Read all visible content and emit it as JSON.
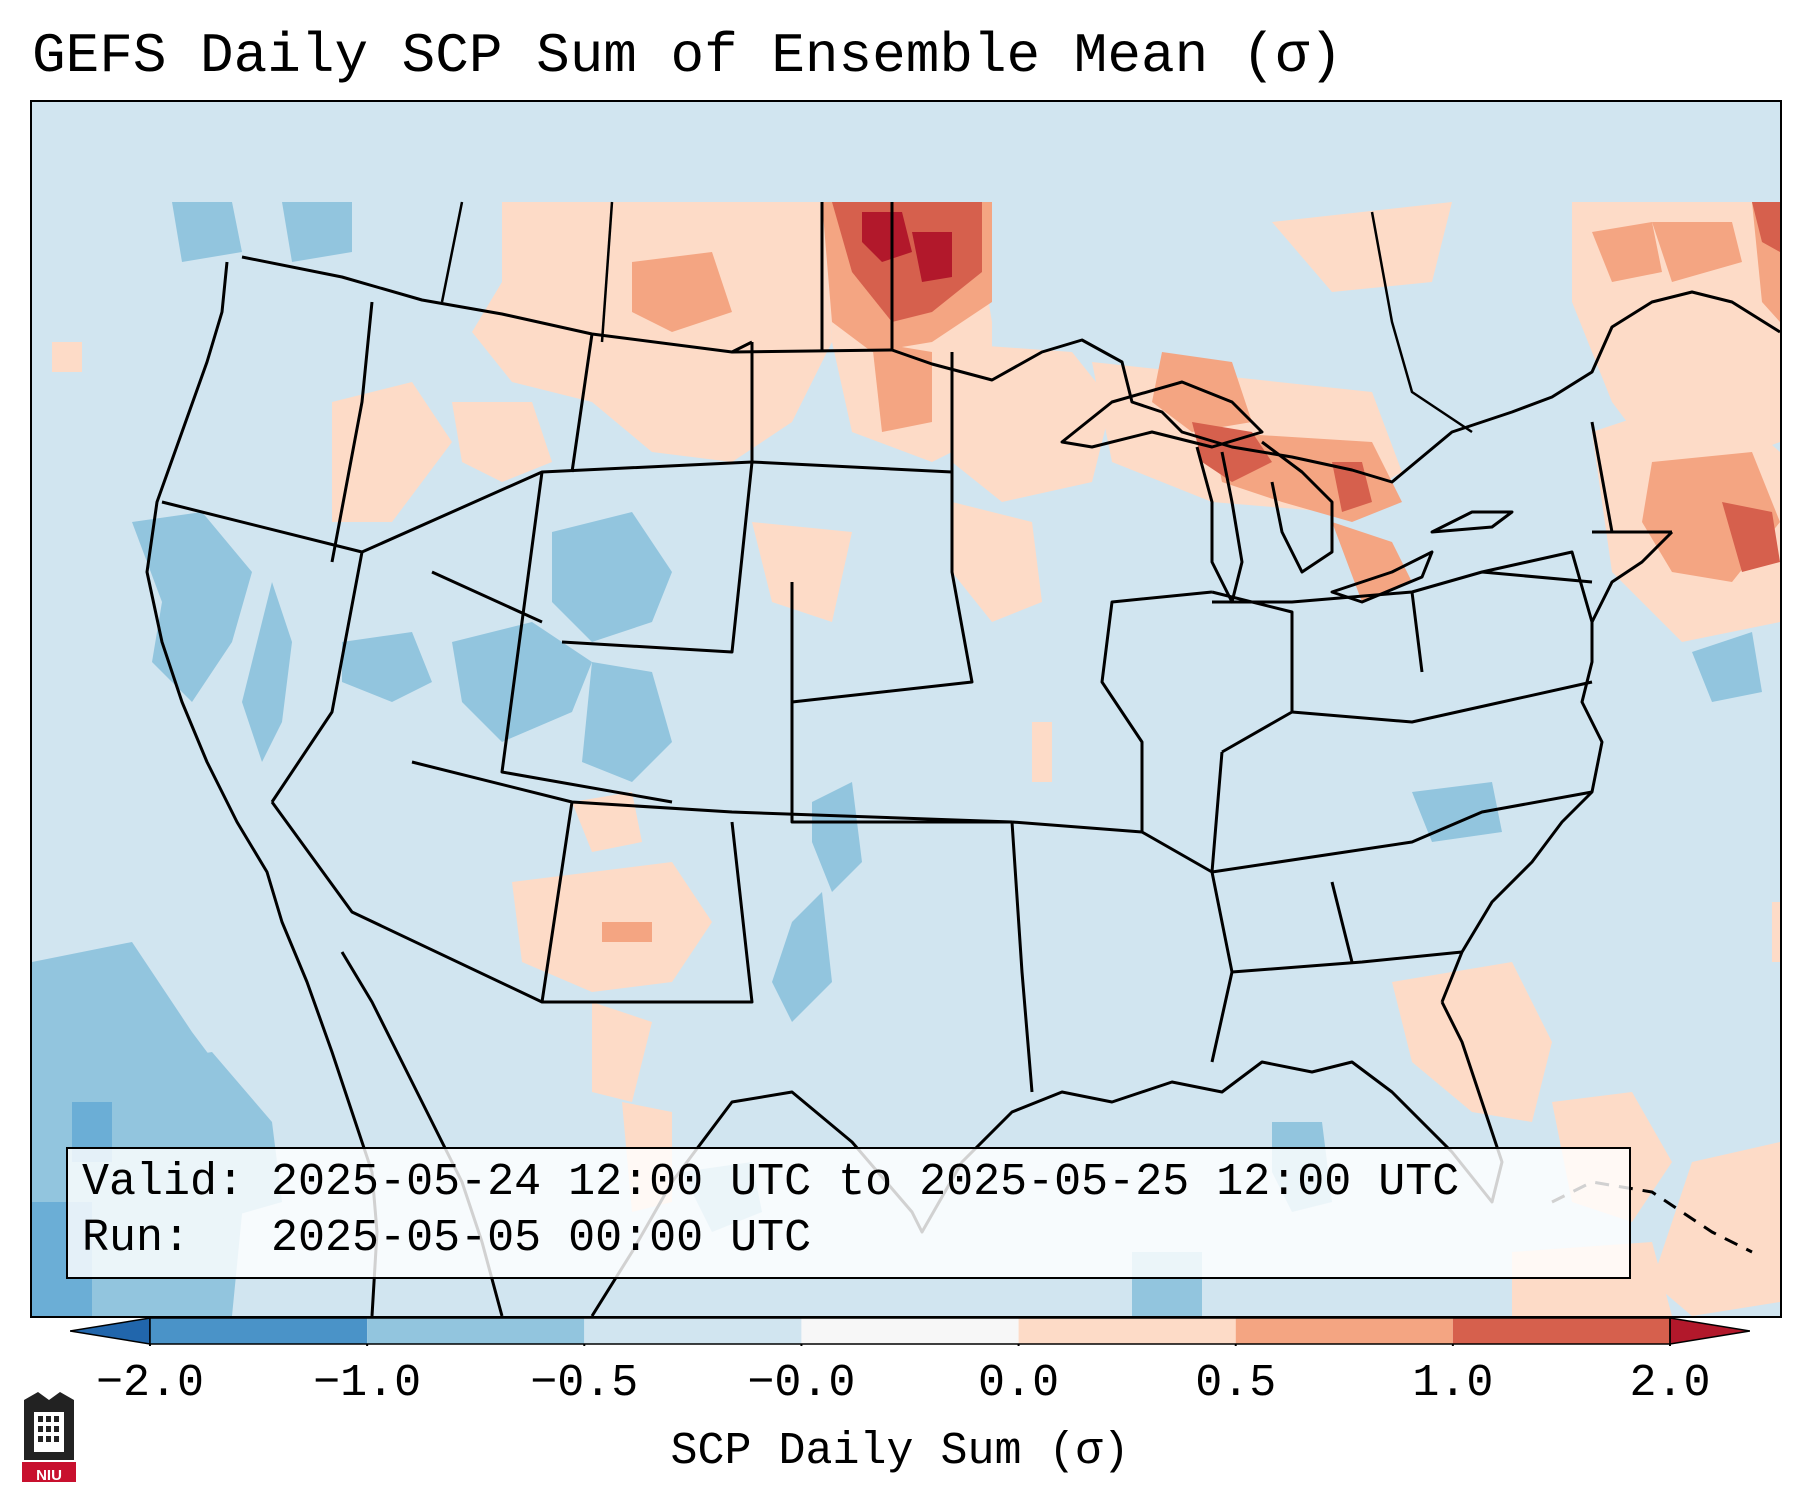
{
  "title": "GEFS Daily SCP Sum of Ensemble Mean (σ)",
  "info": {
    "valid_label": "Valid:",
    "valid_value": "2025-05-24 12:00 UTC to 2025-05-25 12:00 UTC",
    "run_label": "Run:",
    "run_value": "2025-05-05 00:00 UTC"
  },
  "colorbar": {
    "label": "SCP Daily Sum (σ)",
    "ticks": [
      "−2.0",
      "−1.0",
      "−0.5",
      "−0.0",
      "0.0",
      "0.5",
      "1.0",
      "2.0"
    ],
    "bins": [
      {
        "color": "#4a93c8"
      },
      {
        "color": "#92c5de"
      },
      {
        "color": "#d1e5f0"
      },
      {
        "color": "#f7f7f7"
      },
      {
        "color": "#fddbc7"
      },
      {
        "color": "#f4a582"
      },
      {
        "color": "#d6604d"
      }
    ],
    "extend_low_color": "#2166ac",
    "extend_high_color": "#b2182b"
  },
  "map": {
    "background_color": "#d1e5f0",
    "regions": [
      {
        "area": "North Dakota / southern Manitoba",
        "level": "1.0 to 2.0+"
      },
      {
        "area": "Great Lakes (Lake Superior, Lake Huron, Lake Michigan)",
        "level": "0.5 to 1.0"
      },
      {
        "area": "Southern New England / Gulf of Maine",
        "level": "0.5 to 1.0"
      },
      {
        "area": "Quebec / New Brunswick",
        "level": "0.5 to 1.0"
      },
      {
        "area": "Montana / Idaho / Wyoming north",
        "level": "0.0 to 0.5"
      },
      {
        "area": "New Mexico / west Texas",
        "level": "0.0 to 0.5"
      },
      {
        "area": "Florida / western Atlantic",
        "level": "0.0 to 0.5"
      },
      {
        "area": "Great Basin / Utah / Colorado",
        "level": "-1.0 to -0.5"
      },
      {
        "area": "Eastern Pacific off Baja California",
        "level": "-1.0 to -0.5"
      },
      {
        "area": "Central/Eastern US",
        "level": "-0.5 to 0.0"
      }
    ]
  },
  "logo": {
    "text": "NIU"
  }
}
